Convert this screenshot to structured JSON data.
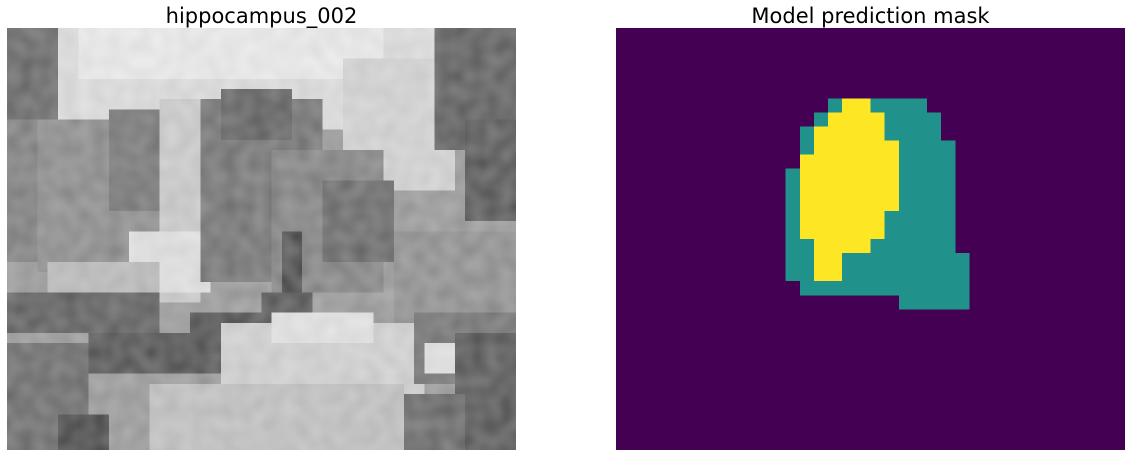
{
  "panels": [
    {
      "id": "image",
      "title": "hippocampus_002"
    },
    {
      "id": "mask",
      "title": "Model prediction mask"
    }
  ],
  "colors": {
    "background_class": "#440154",
    "class_1": "#21918c",
    "class_2": "#fde725"
  }
}
